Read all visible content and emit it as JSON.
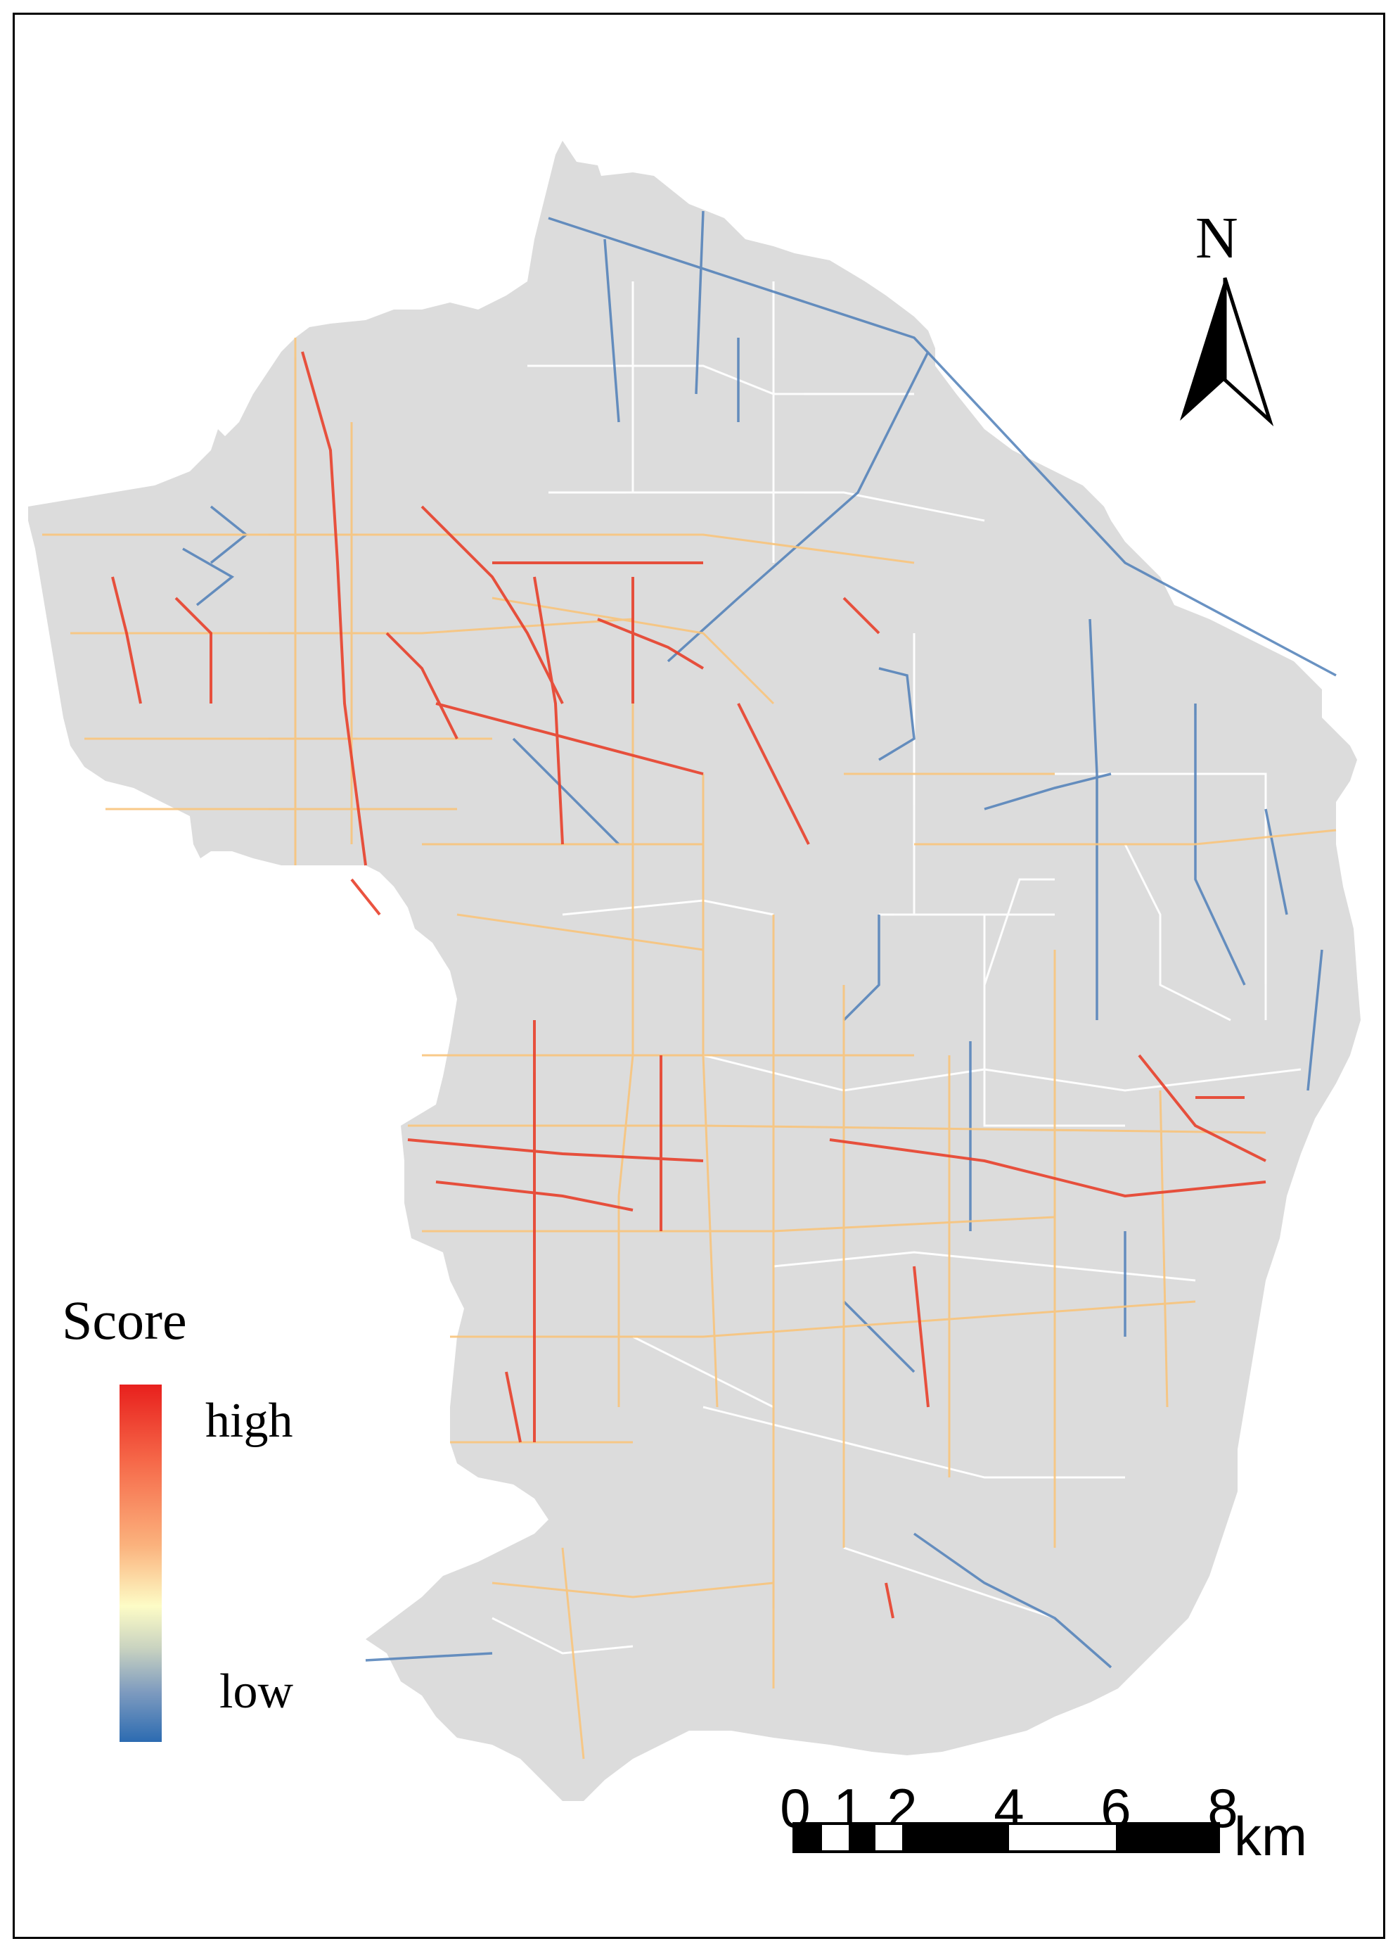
{
  "legend": {
    "title": "Score",
    "high_label": "high",
    "low_label": "low",
    "ramp_colors": [
      "#e8201d",
      "#f66a4a",
      "#fbb27d",
      "#fdfcc6",
      "#c8d2c0",
      "#7e9bbf",
      "#2c6bb1"
    ]
  },
  "north_arrow": {
    "label": "N"
  },
  "scale_bar": {
    "ticks": [
      "0",
      "1",
      "2",
      "4",
      "6",
      "8"
    ],
    "unit": "km"
  },
  "colors": {
    "district_fill": "#dcdcdc",
    "minor_road": "#ffffff",
    "score_high": "#e8201d",
    "score_mid": "#fdd9a0",
    "score_low": "#2c6bb1"
  }
}
